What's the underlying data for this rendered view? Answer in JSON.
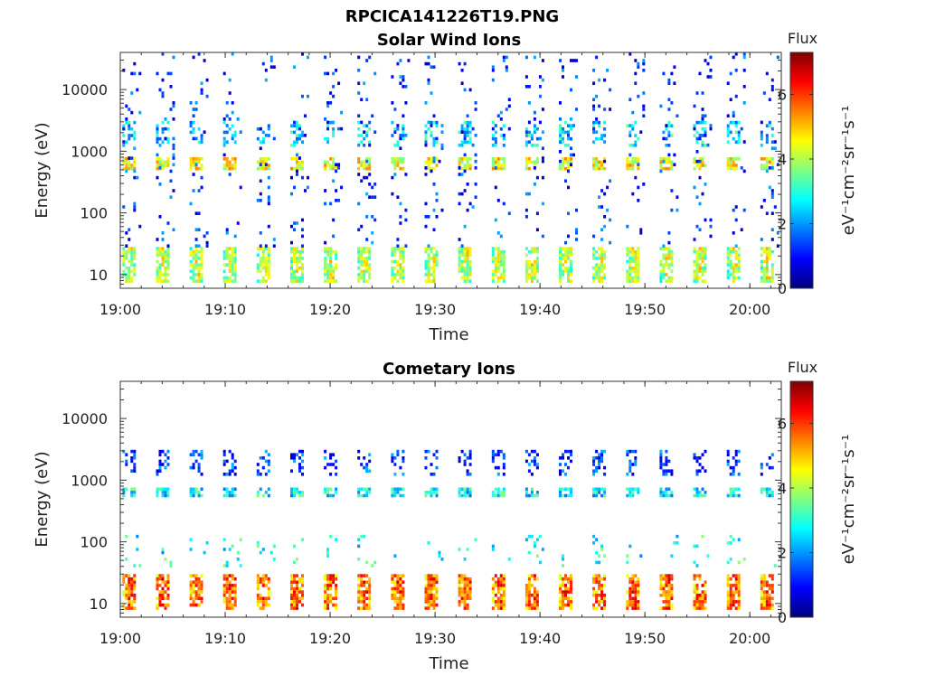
{
  "figure": {
    "title": "RPCICA141226T19.PNG"
  },
  "colors": {
    "colormap": "jet",
    "colormap_stops": [
      "#00007f",
      "#0000ff",
      "#00ffff",
      "#ffff00",
      "#ff0000",
      "#7f0000"
    ]
  },
  "chart_data": [
    {
      "type": "heatmap",
      "title": "Solar Wind Ions",
      "xlabel": "Time",
      "ylabel": "Energy (eV)",
      "y_scale": "log",
      "ylim": [
        6,
        40000
      ],
      "xlim": [
        "19:00",
        "20:03"
      ],
      "x_ticks": [
        "19:00",
        "19:10",
        "19:20",
        "19:30",
        "19:40",
        "19:50",
        "20:00"
      ],
      "y_ticks": [
        10,
        100,
        1000,
        10000
      ],
      "y_tick_labels": [
        "10",
        "100",
        "1000",
        "10000"
      ],
      "colorbar": {
        "label": "Flux",
        "units": "eV⁻¹cm⁻²sr⁻¹s⁻¹",
        "range": [
          0,
          7.3
        ],
        "ticks": [
          0,
          2,
          4,
          6
        ],
        "tick_labels": [
          "0",
          "2",
          "4",
          "6"
        ]
      },
      "sweep_start_minutes": [
        0.0,
        3.2,
        6.4,
        9.6,
        12.8,
        16.0,
        19.2,
        22.4,
        25.6,
        28.8,
        32.0,
        35.2,
        38.4,
        41.6,
        44.8,
        48.0,
        51.2,
        54.4,
        57.6,
        60.8
      ],
      "bands": [
        {
          "e_min": 8,
          "e_max": 28,
          "flux": 3.6,
          "note": "low-energy band"
        },
        {
          "e_min": 520,
          "e_max": 800,
          "flux": 4.5,
          "note": "solar wind peak"
        },
        {
          "e_min": 1300,
          "e_max": 3100,
          "flux": 2.5,
          "note": "alpha band"
        },
        {
          "e_min": 30,
          "e_max": 40000,
          "flux": 1.2,
          "note": "sparse background"
        }
      ]
    },
    {
      "type": "heatmap",
      "title": "Cometary Ions",
      "xlabel": "Time",
      "ylabel": "Energy (eV)",
      "y_scale": "log",
      "ylim": [
        6,
        40000
      ],
      "xlim": [
        "19:00",
        "20:03"
      ],
      "x_ticks": [
        "19:00",
        "19:10",
        "19:20",
        "19:30",
        "19:40",
        "19:50",
        "20:00"
      ],
      "y_ticks": [
        10,
        100,
        1000,
        10000
      ],
      "y_tick_labels": [
        "10",
        "100",
        "1000",
        "10000"
      ],
      "colorbar": {
        "label": "Flux",
        "units": "eV⁻¹cm⁻²sr⁻¹s⁻¹",
        "range": [
          0,
          7.3
        ],
        "ticks": [
          0,
          2,
          4,
          6
        ],
        "tick_labels": [
          "0",
          "2",
          "4",
          "6"
        ]
      },
      "sweep_start_minutes": [
        0.0,
        3.2,
        6.4,
        9.6,
        12.8,
        16.0,
        19.2,
        22.4,
        25.6,
        28.8,
        32.0,
        35.2,
        38.4,
        41.6,
        44.8,
        48.0,
        51.2,
        54.4,
        57.6,
        60.8
      ],
      "bands": [
        {
          "e_min": 8,
          "e_max": 30,
          "flux": 5.2,
          "note": "intense low-energy cometary ions"
        },
        {
          "e_min": 40,
          "e_max": 130,
          "flux": 2.8,
          "note": "scattered cometary ions"
        },
        {
          "e_min": 560,
          "e_max": 760,
          "flux": 2.7,
          "note": "solar wind leakage"
        },
        {
          "e_min": 1300,
          "e_max": 3100,
          "flux": 1.3,
          "note": "alpha leakage"
        }
      ]
    }
  ]
}
